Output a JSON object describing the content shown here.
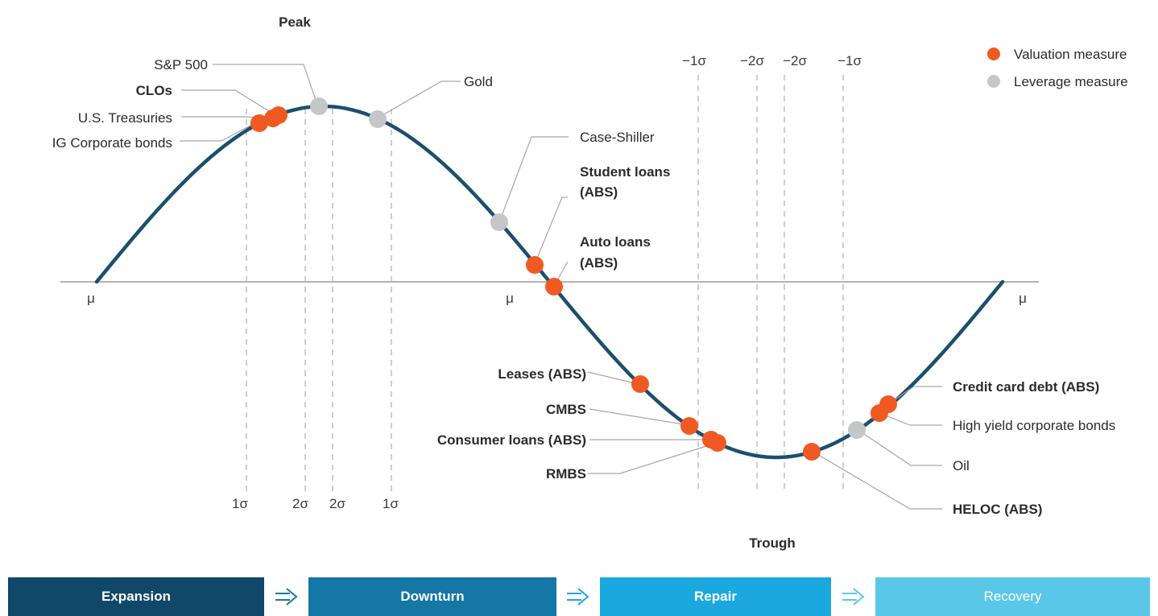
{
  "labels": {
    "peak": "Peak",
    "trough": "Trough",
    "mu": "μ"
  },
  "sigma_top": [
    "−1σ",
    "−2σ",
    "−2σ",
    "−1σ"
  ],
  "sigma_bottom": [
    "1σ",
    "2σ",
    "2σ",
    "1σ"
  ],
  "legend": [
    {
      "label": "Valuation measure",
      "color": "#f05a22"
    },
    {
      "label": "Leverage measure",
      "color": "#c4c6c8"
    }
  ],
  "curve_color": "#1b4f6e",
  "markers": [
    {
      "label": "IG Corporate bonds",
      "bold": false,
      "type": "valuation"
    },
    {
      "label": "U.S. Treasuries",
      "bold": false,
      "type": "valuation"
    },
    {
      "label": "CLOs",
      "bold": true,
      "type": "valuation"
    },
    {
      "label": "S&P 500",
      "bold": false,
      "type": "leverage"
    },
    {
      "label": "Gold",
      "bold": false,
      "type": "leverage"
    },
    {
      "label": "Case-Shiller",
      "bold": false,
      "type": "leverage"
    },
    {
      "label": "Student loans",
      "label2": "(ABS)",
      "bold": true,
      "type": "valuation"
    },
    {
      "label": "Auto loans",
      "label2": "(ABS)",
      "bold": true,
      "type": "valuation"
    },
    {
      "label": "Leases (ABS)",
      "bold": true,
      "type": "valuation"
    },
    {
      "label": "CMBS",
      "bold": true,
      "type": "valuation"
    },
    {
      "label": "Consumer loans (ABS)",
      "bold": true,
      "type": "valuation"
    },
    {
      "label": "RMBS",
      "bold": true,
      "type": "valuation"
    },
    {
      "label": "HELOC (ABS)",
      "bold": true,
      "type": "valuation"
    },
    {
      "label": "Oil",
      "bold": false,
      "type": "leverage"
    },
    {
      "label": "High yield corporate bonds",
      "bold": false,
      "type": "valuation"
    },
    {
      "label": "Credit card debt (ABS)",
      "bold": true,
      "type": "valuation"
    }
  ],
  "phases": [
    {
      "label": "Expansion",
      "color": "#0f4868"
    },
    {
      "label": "Downturn",
      "color": "#1477a6"
    },
    {
      "label": "Repair",
      "color": "#1ba8df"
    },
    {
      "label": "Recovery",
      "color": "#5bc7e8"
    }
  ]
}
